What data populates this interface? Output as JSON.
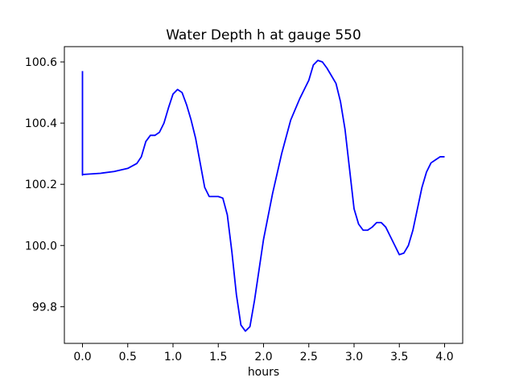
{
  "chart_data": {
    "type": "line",
    "title": "Water Depth h at gauge 550",
    "xlabel": "hours",
    "ylabel": "",
    "xlim": [
      -0.2,
      4.2
    ],
    "ylim": [
      99.68,
      100.65
    ],
    "xticks": [
      0.0,
      0.5,
      1.0,
      1.5,
      2.0,
      2.5,
      3.0,
      3.5,
      4.0
    ],
    "xtick_labels": [
      "0.0",
      "0.5",
      "1.0",
      "1.5",
      "2.0",
      "2.5",
      "3.0",
      "3.5",
      "4.0"
    ],
    "yticks": [
      99.8,
      100.0,
      100.2,
      100.4,
      100.6
    ],
    "ytick_labels": [
      "99.8",
      "100.0",
      "100.2",
      "100.4",
      "100.6"
    ],
    "grid": false,
    "series": [
      {
        "color": "#0000ff",
        "x": [
          0.0,
          0.0,
          0.0,
          0.2,
          0.35,
          0.5,
          0.6,
          0.65,
          0.7,
          0.75,
          0.8,
          0.85,
          0.9,
          0.95,
          1.0,
          1.05,
          1.1,
          1.15,
          1.2,
          1.25,
          1.3,
          1.35,
          1.4,
          1.45,
          1.5,
          1.55,
          1.6,
          1.65,
          1.7,
          1.75,
          1.8,
          1.85,
          1.9,
          1.95,
          2.0,
          2.1,
          2.2,
          2.3,
          2.4,
          2.5,
          2.55,
          2.6,
          2.65,
          2.7,
          2.75,
          2.8,
          2.85,
          2.9,
          2.95,
          3.0,
          3.05,
          3.1,
          3.15,
          3.2,
          3.25,
          3.3,
          3.35,
          3.4,
          3.45,
          3.5,
          3.55,
          3.6,
          3.65,
          3.7,
          3.75,
          3.8,
          3.85,
          3.9,
          3.95,
          4.0
        ],
        "y": [
          100.57,
          100.23,
          100.232,
          100.236,
          100.242,
          100.252,
          100.268,
          100.29,
          100.34,
          100.36,
          100.36,
          100.37,
          100.4,
          100.45,
          100.495,
          100.51,
          100.5,
          100.46,
          100.41,
          100.35,
          100.27,
          100.19,
          100.16,
          100.16,
          100.16,
          100.155,
          100.1,
          99.98,
          99.84,
          99.74,
          99.72,
          99.735,
          99.82,
          99.92,
          100.02,
          100.17,
          100.3,
          100.41,
          100.48,
          100.54,
          100.59,
          100.605,
          100.6,
          100.58,
          100.555,
          100.53,
          100.47,
          100.38,
          100.25,
          100.12,
          100.07,
          100.05,
          100.05,
          100.06,
          100.075,
          100.075,
          100.06,
          100.03,
          100.0,
          99.97,
          99.975,
          100.0,
          100.05,
          100.12,
          100.19,
          100.24,
          100.27,
          100.28,
          100.29,
          100.29
        ]
      }
    ]
  }
}
